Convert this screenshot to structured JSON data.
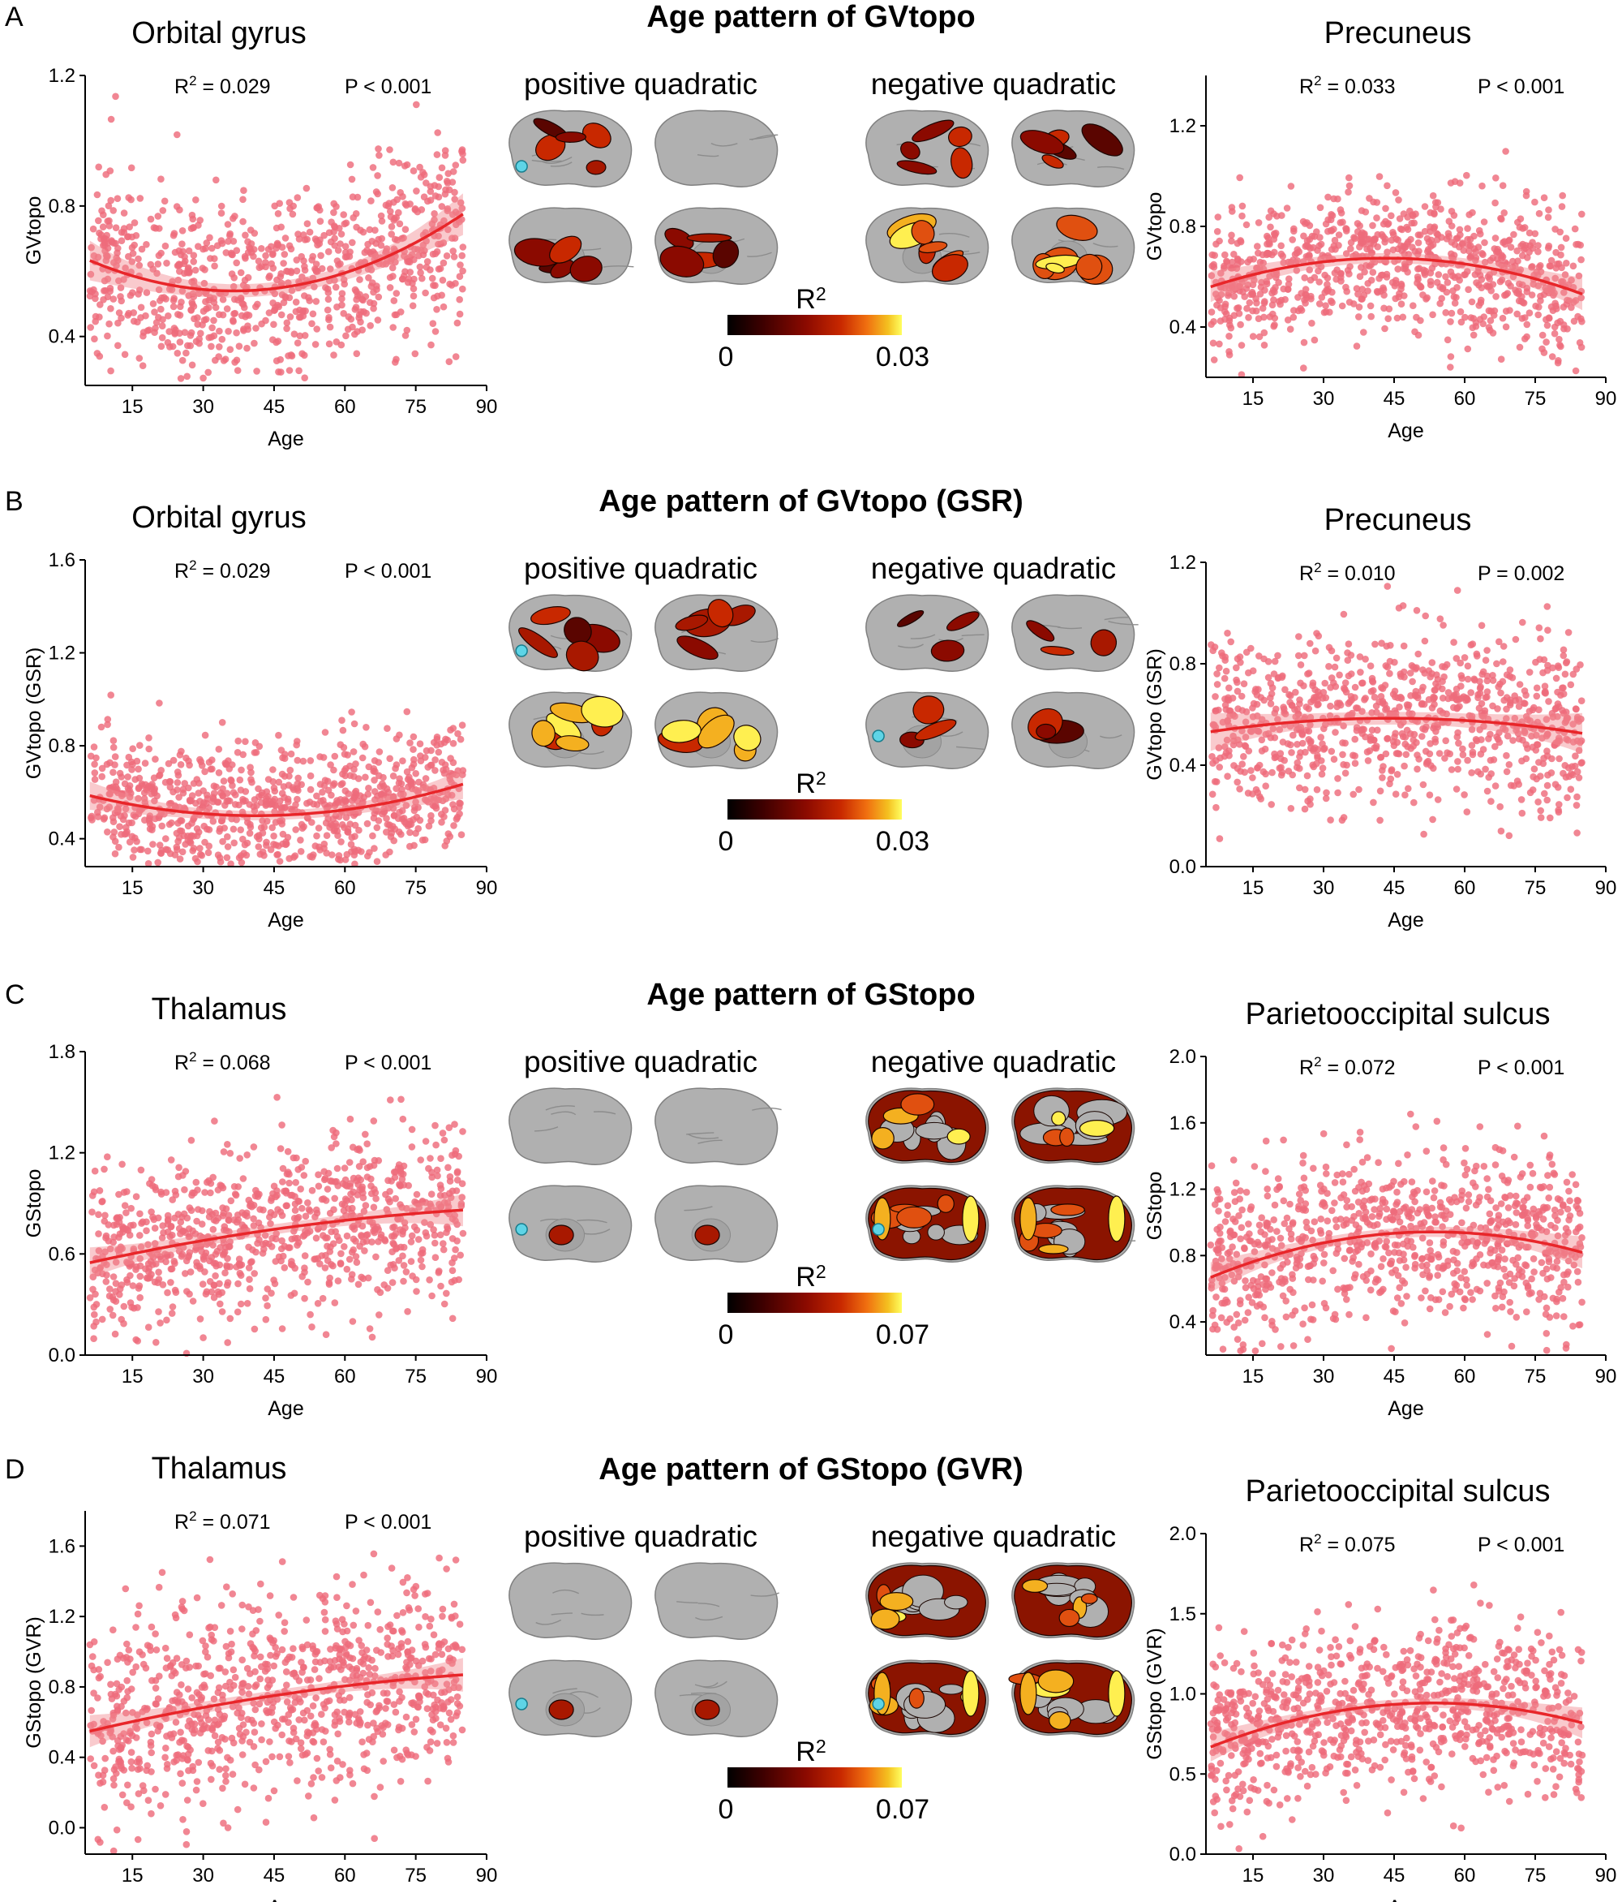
{
  "sections": [
    {
      "letter": "A",
      "title": "Age pattern of GVtopo",
      "positive_label": "positive quadratic",
      "negative_label": "negative quadratic",
      "colorbar": {
        "label": "R²",
        "min": "0",
        "max": "0.03"
      },
      "brain_maps": {
        "positive": {
          "lateral_left": "medium",
          "lateral_right": "none",
          "medial_left": "medium",
          "medial_right": "medium"
        },
        "negative": {
          "lateral_left": "medium",
          "lateral_right": "medium",
          "medial_left": "strong",
          "medial_right": "strong"
        },
        "seed": "positive lateral-left"
      },
      "plots": [
        {
          "region": "Orbital gyrus",
          "r2": "R² = 0.029",
          "p": "P < 0.001",
          "ylabel": "GVtopo",
          "xlabel": "Age",
          "ylim": [
            0.25,
            1.2
          ],
          "yticks": [
            0.4,
            0.8,
            1.2
          ],
          "yfmt": 1,
          "xlim": [
            5,
            90
          ],
          "xticks": [
            15,
            30,
            45,
            60,
            75,
            90
          ],
          "fit": [
            0.0001,
            -0.0073,
            0.673
          ],
          "band": 0.02,
          "noise": 0.15,
          "seed": 11
        },
        {
          "region": "Precuneus",
          "r2": "R² = 0.033",
          "p": "P < 0.001",
          "ylabel": "GVtopo",
          "xlabel": "Age",
          "ylim": [
            0.2,
            1.4
          ],
          "yticks": [
            0.4,
            0.8,
            1.2
          ],
          "yfmt": 1,
          "xlim": [
            5,
            90
          ],
          "xticks": [
            15,
            30,
            45,
            60,
            75,
            90
          ],
          "fit": [
            -8.2e-05,
            0.0071,
            0.52
          ],
          "band": 0.02,
          "noise": 0.14,
          "seed": 23
        }
      ]
    },
    {
      "letter": "B",
      "title": "Age pattern of GVtopo (GSR)",
      "positive_label": "positive quadratic",
      "negative_label": "negative quadratic",
      "colorbar": {
        "label": "R²",
        "min": "0",
        "max": "0.03"
      },
      "brain_maps": {
        "positive": {
          "lateral_left": "medium",
          "lateral_right": "medium",
          "medial_left": "strong",
          "medial_right": "strong"
        },
        "negative": {
          "lateral_left": "weak",
          "lateral_right": "weak",
          "medial_left": "weak",
          "medial_right": "weak"
        },
        "seed": "positive lateral-left, negative medial-left"
      },
      "plots": [
        {
          "region": "Orbital gyrus",
          "r2": "R² = 0.029",
          "p": "P < 0.001",
          "ylabel": "GVtopo (GSR)",
          "xlabel": "Age",
          "ylim": [
            0.28,
            1.6
          ],
          "yticks": [
            0.4,
            0.8,
            1.2,
            1.6
          ],
          "yfmt": 1,
          "xlim": [
            5,
            90
          ],
          "xticks": [
            15,
            30,
            45,
            60,
            75,
            90
          ],
          "fit": [
            7e-05,
            -0.00574,
            0.617
          ],
          "band": 0.02,
          "noise": 0.15,
          "seed": 37
        },
        {
          "region": "Precuneus",
          "r2": "R² = 0.010",
          "p": "P = 0.002",
          "ylabel": "GVtopo (GSR)",
          "xlabel": "Age",
          "ylim": [
            0.0,
            1.2
          ],
          "yticks": [
            0.0,
            0.4,
            0.8,
            1.2
          ],
          "yfmt": 1,
          "xlim": [
            5,
            90
          ],
          "xticks": [
            15,
            30,
            45,
            60,
            75,
            90
          ],
          "fit": [
            -3.6e-05,
            0.0032,
            0.514
          ],
          "band": 0.025,
          "noise": 0.17,
          "seed": 41
        }
      ]
    },
    {
      "letter": "C",
      "title": "Age pattern of GStopo",
      "positive_label": "positive quadratic",
      "negative_label": "negative quadratic",
      "colorbar": {
        "label": "R²",
        "min": "0",
        "max": "0.07"
      },
      "brain_maps": {
        "positive": {
          "lateral_left": "none",
          "lateral_right": "none",
          "medial_left": "thalamus",
          "medial_right": "thalamus"
        },
        "negative": {
          "lateral_left": "widespread",
          "lateral_right": "widespread",
          "medial_left": "widespread",
          "medial_right": "widespread"
        },
        "seed": "positive medial-left, negative medial-left"
      },
      "plots": [
        {
          "region": "Thalamus",
          "r2": "R² = 0.068",
          "p": "P < 0.001",
          "ylabel": "GStopo",
          "xlabel": "Age",
          "ylim": [
            0.0,
            1.8
          ],
          "yticks": [
            0.0,
            0.6,
            1.2,
            1.8
          ],
          "yfmt": 1,
          "xlim": [
            5,
            90
          ],
          "xticks": [
            15,
            30,
            45,
            60,
            75,
            90
          ],
          "fit": [
            -2.8e-05,
            0.0065,
            0.51
          ],
          "band": 0.03,
          "noise": 0.25,
          "seed": 53
        },
        {
          "region": "Parietooccipital sulcus",
          "r2": "R² = 0.072",
          "p": "P < 0.001",
          "ylabel": "GStopo",
          "xlabel": "Age",
          "ylim": [
            0.2,
            2.0
          ],
          "yticks": [
            0.4,
            0.8,
            1.2,
            1.6,
            2.0
          ],
          "yfmt": 1,
          "xlim": [
            5,
            90
          ],
          "xticks": [
            15,
            30,
            45,
            60,
            75,
            90
          ],
          "fit": [
            -0.000123,
            0.0131,
            0.594
          ],
          "band": 0.03,
          "noise": 0.25,
          "seed": 67
        }
      ]
    },
    {
      "letter": "D",
      "title": "Age pattern of GStopo (GVR)",
      "positive_label": "positive quadratic",
      "negative_label": "negative quadratic",
      "colorbar": {
        "label": "R²",
        "min": "0",
        "max": "0.07"
      },
      "brain_maps": {
        "positive": {
          "lateral_left": "none",
          "lateral_right": "none",
          "medial_left": "thalamus",
          "medial_right": "thalamus"
        },
        "negative": {
          "lateral_left": "widespread",
          "lateral_right": "widespread",
          "medial_left": "widespread",
          "medial_right": "widespread"
        },
        "seed": "positive medial-left, negative medial-left"
      },
      "plots": [
        {
          "region": "Thalamus",
          "r2": "R² = 0.071",
          "p": "P < 0.001",
          "ylabel": "GStopo (GVR)",
          "xlabel": "Age",
          "ylim": [
            -0.15,
            1.8
          ],
          "yticks": [
            0.0,
            0.4,
            0.8,
            1.2,
            1.6
          ],
          "yfmt": 1,
          "xlim": [
            5,
            90
          ],
          "xticks": [
            15,
            30,
            45,
            60,
            75,
            90
          ],
          "fit": [
            -2.8e-05,
            0.0066,
            0.51
          ],
          "band": 0.03,
          "noise": 0.28,
          "seed": 71
        },
        {
          "region": "Parietooccipital sulcus",
          "r2": "R² = 0.075",
          "p": "P < 0.001",
          "ylabel": "GStopo (GVR)",
          "xlabel": "Age",
          "ylim": [
            0.0,
            2.0
          ],
          "yticks": [
            0.0,
            0.5,
            1.0,
            1.5,
            2.0
          ],
          "yfmt": 1,
          "xlim": [
            5,
            90
          ],
          "xticks": [
            15,
            30,
            45,
            60,
            75,
            90
          ],
          "fit": [
            -0.000123,
            0.0131,
            0.594
          ],
          "band": 0.03,
          "noise": 0.26,
          "seed": 83
        }
      ]
    }
  ],
  "chart_data": [
    {
      "type": "scatter",
      "title": "Orbital gyrus",
      "annotations": [
        "R² = 0.029",
        "P < 0.001"
      ],
      "xlabel": "Age",
      "ylabel": "GVtopo",
      "xlim": [
        5,
        90
      ],
      "ylim": [
        0.25,
        1.2
      ],
      "grid": false,
      "x": [
        8,
        15,
        20,
        25,
        30,
        35,
        40,
        45,
        50,
        55,
        60,
        65,
        70,
        75,
        80,
        85
      ],
      "y": [
        0.62,
        0.6,
        0.58,
        0.57,
        0.55,
        0.54,
        0.54,
        0.54,
        0.55,
        0.56,
        0.57,
        0.6,
        0.62,
        0.64,
        0.66,
        0.68
      ],
      "series": [
        {
          "name": "quadratic fit",
          "type": "line"
        }
      ]
    },
    {
      "type": "scatter",
      "title": "Precuneus",
      "annotations": [
        "R² = 0.033",
        "P < 0.001"
      ],
      "xlabel": "Age",
      "ylabel": "GVtopo",
      "xlim": [
        5,
        90
      ],
      "ylim": [
        0.2,
        1.4
      ],
      "grid": false,
      "x": [
        8,
        15,
        20,
        25,
        30,
        35,
        40,
        45,
        50,
        55,
        60,
        65,
        70,
        75,
        80,
        85
      ],
      "y": [
        0.57,
        0.61,
        0.63,
        0.64,
        0.66,
        0.67,
        0.67,
        0.67,
        0.67,
        0.66,
        0.65,
        0.63,
        0.61,
        0.58,
        0.55,
        0.52
      ],
      "series": [
        {
          "name": "quadratic fit",
          "type": "line"
        }
      ]
    },
    {
      "type": "scatter",
      "title": "Orbital gyrus",
      "annotations": [
        "R² = 0.029",
        "P < 0.001"
      ],
      "xlabel": "Age",
      "ylabel": "GVtopo (GSR)",
      "xlim": [
        5,
        90
      ],
      "ylim": [
        0.28,
        1.6
      ],
      "grid": false,
      "x": [
        8,
        15,
        20,
        25,
        30,
        35,
        40,
        45,
        50,
        55,
        60,
        65,
        70,
        75,
        80,
        85
      ],
      "y": [
        0.57,
        0.55,
        0.53,
        0.52,
        0.51,
        0.5,
        0.5,
        0.5,
        0.51,
        0.52,
        0.53,
        0.55,
        0.57,
        0.59,
        0.61,
        0.64
      ],
      "series": [
        {
          "name": "quadratic fit",
          "type": "line"
        }
      ]
    },
    {
      "type": "scatter",
      "title": "Precuneus",
      "annotations": [
        "R² = 0.010",
        "P = 0.002"
      ],
      "xlabel": "Age",
      "ylabel": "GVtopo (GSR)",
      "xlim": [
        5,
        90
      ],
      "ylim": [
        0.0,
        1.2
      ],
      "grid": false,
      "x": [
        8,
        15,
        20,
        25,
        30,
        35,
        40,
        45,
        50,
        55,
        60,
        65,
        70,
        75,
        80,
        85
      ],
      "y": [
        0.54,
        0.55,
        0.56,
        0.57,
        0.58,
        0.58,
        0.58,
        0.58,
        0.58,
        0.57,
        0.56,
        0.55,
        0.54,
        0.52,
        0.5,
        0.49
      ],
      "series": [
        {
          "name": "quadratic fit",
          "type": "line"
        }
      ]
    },
    {
      "type": "scatter",
      "title": "Thalamus",
      "annotations": [
        "R² = 0.068",
        "P < 0.001"
      ],
      "xlabel": "Age",
      "ylabel": "GStopo",
      "xlim": [
        5,
        90
      ],
      "ylim": [
        0.0,
        1.8
      ],
      "grid": false,
      "x": [
        8,
        15,
        20,
        25,
        30,
        35,
        40,
        45,
        50,
        55,
        60,
        65,
        70,
        75,
        80,
        85
      ],
      "y": [
        0.56,
        0.6,
        0.63,
        0.66,
        0.68,
        0.71,
        0.72,
        0.74,
        0.76,
        0.77,
        0.79,
        0.8,
        0.81,
        0.81,
        0.82,
        0.82
      ],
      "series": [
        {
          "name": "quadratic fit",
          "type": "line"
        }
      ]
    },
    {
      "type": "scatter",
      "title": "Parietooccipital sulcus",
      "annotations": [
        "R² = 0.072",
        "P < 0.001"
      ],
      "xlabel": "Age",
      "ylabel": "GStopo",
      "xlim": [
        5,
        90
      ],
      "ylim": [
        0.2,
        2.0
      ],
      "grid": false,
      "x": [
        8,
        15,
        20,
        25,
        30,
        35,
        40,
        45,
        50,
        55,
        60,
        65,
        70,
        75,
        80,
        85
      ],
      "y": [
        0.69,
        0.76,
        0.81,
        0.85,
        0.88,
        0.91,
        0.92,
        0.94,
        0.94,
        0.94,
        0.93,
        0.92,
        0.9,
        0.88,
        0.85,
        0.82
      ],
      "series": [
        {
          "name": "quadratic fit",
          "type": "line"
        }
      ]
    },
    {
      "type": "scatter",
      "title": "Thalamus",
      "annotations": [
        "R² = 0.071",
        "P < 0.001"
      ],
      "xlabel": "Age",
      "ylabel": "GStopo (GVR)",
      "xlim": [
        5,
        90
      ],
      "ylim": [
        -0.15,
        1.8
      ],
      "grid": false,
      "x": [
        8,
        15,
        20,
        25,
        30,
        35,
        40,
        45,
        50,
        55,
        60,
        65,
        70,
        75,
        80,
        85
      ],
      "y": [
        0.56,
        0.6,
        0.63,
        0.66,
        0.68,
        0.71,
        0.73,
        0.75,
        0.76,
        0.78,
        0.79,
        0.8,
        0.81,
        0.82,
        0.82,
        0.82
      ],
      "series": [
        {
          "name": "quadratic fit",
          "type": "line"
        }
      ]
    },
    {
      "type": "scatter",
      "title": "Parietooccipital sulcus",
      "annotations": [
        "R² = 0.075",
        "P < 0.001"
      ],
      "xlabel": "Age",
      "ylabel": "GStopo (GVR)",
      "xlim": [
        5,
        90
      ],
      "ylim": [
        0.0,
        2.0
      ],
      "grid": false,
      "x": [
        8,
        15,
        20,
        25,
        30,
        35,
        40,
        45,
        50,
        55,
        60,
        65,
        70,
        75,
        80,
        85
      ],
      "y": [
        0.69,
        0.76,
        0.81,
        0.85,
        0.88,
        0.91,
        0.92,
        0.94,
        0.94,
        0.94,
        0.93,
        0.92,
        0.9,
        0.88,
        0.85,
        0.82
      ],
      "series": [
        {
          "name": "quadratic fit",
          "type": "line"
        }
      ]
    }
  ],
  "colors": {
    "points": "#ee6b7b",
    "fit": "#e8262a",
    "band": "#f28a91",
    "brain": "#b0b0b0",
    "seed": "#5ed4e6",
    "heat": [
      "#000000",
      "#3d0000",
      "#8b0a00",
      "#c82800",
      "#f07010",
      "#f4c020",
      "#ffff60"
    ]
  }
}
